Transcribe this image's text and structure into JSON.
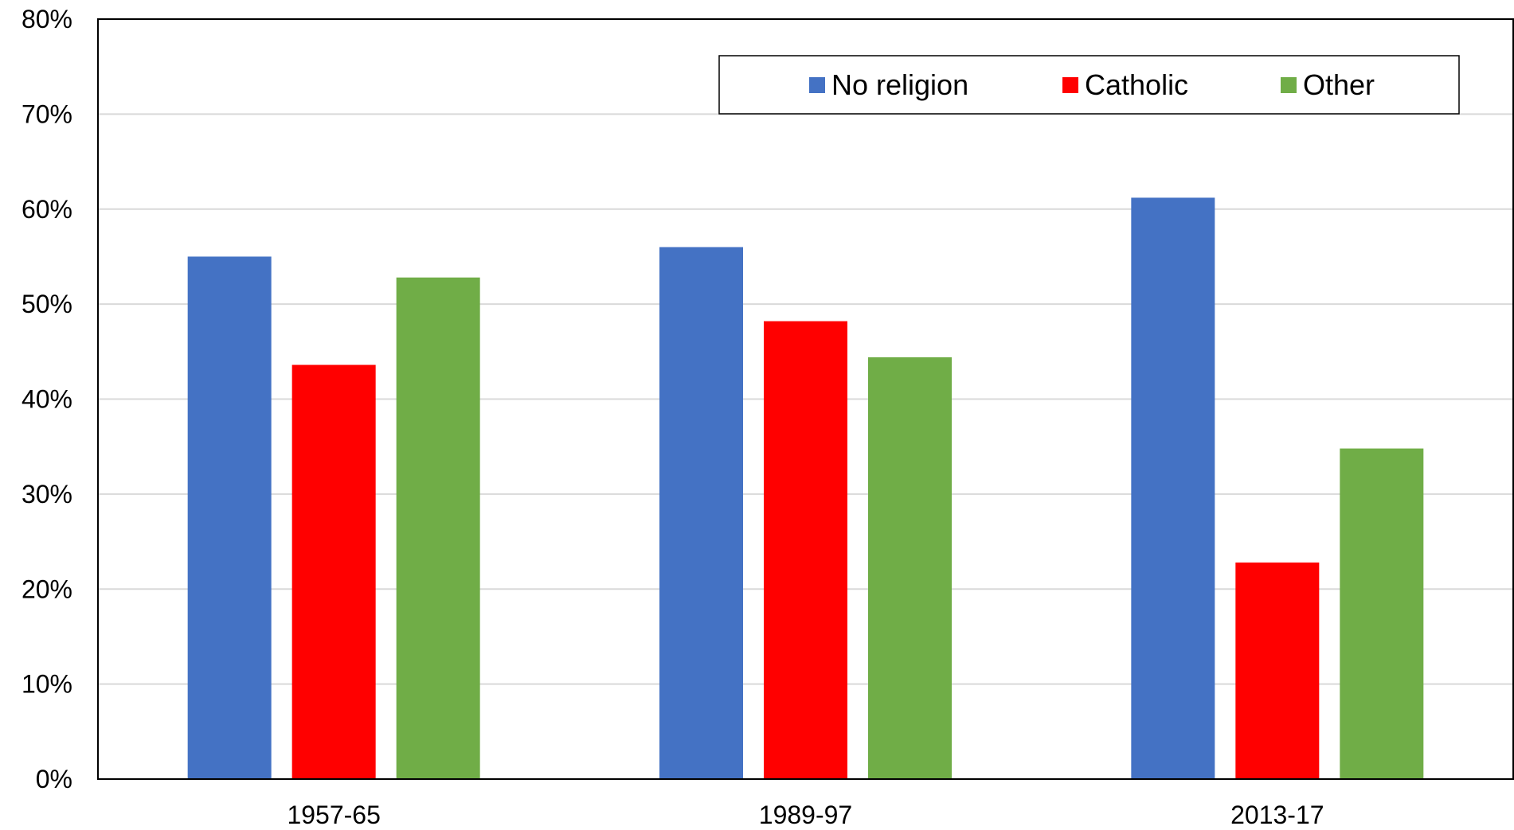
{
  "chart_data": {
    "type": "bar",
    "title": "",
    "xlabel": "",
    "ylabel": "",
    "categories": [
      "1957-65",
      "1989-97",
      "2013-17"
    ],
    "series": [
      {
        "name": "No religion",
        "color": "#4472C4",
        "values": [
          55,
          56,
          61.2
        ]
      },
      {
        "name": "Catholic",
        "color": "#FF0000",
        "values": [
          43.6,
          48.2,
          22.8
        ]
      },
      {
        "name": "Other",
        "color": "#70AD47",
        "values": [
          52.8,
          44.4,
          34.8
        ]
      }
    ],
    "ylim": [
      0,
      80
    ],
    "yticks": [
      0,
      10,
      20,
      30,
      40,
      50,
      60,
      70,
      80
    ],
    "ytick_labels": [
      "0%",
      "10%",
      "20%",
      "30%",
      "40%",
      "50%",
      "60%",
      "70%",
      "80%"
    ],
    "grid": true,
    "legend_position": "top-right"
  }
}
